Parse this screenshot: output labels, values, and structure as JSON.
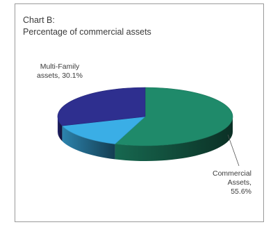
{
  "chart_data": {
    "type": "pie",
    "title": "Chart B:",
    "subtitle": "Percentage of commercial assets",
    "slices": [
      {
        "label_lines": [
          "Commercial",
          "Assets,",
          "55.6%"
        ],
        "value": 55.6,
        "color": "#1f8a6a"
      },
      {
        "label_lines": [],
        "value": 14.3,
        "color": "#3aaee6"
      },
      {
        "label_lines": [
          "Multi-Family",
          "assets, 30.1%"
        ],
        "value": 30.1,
        "color": "#2e2f8f"
      }
    ]
  }
}
